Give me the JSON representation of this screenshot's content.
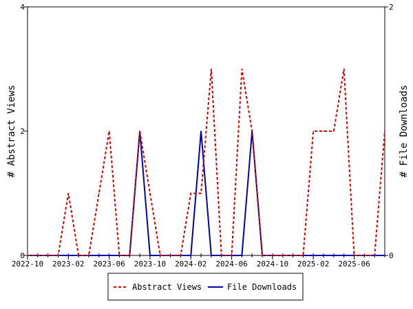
{
  "chart_data": {
    "type": "line",
    "xlabel": "",
    "ylabel_left": "# Abstract Views",
    "ylabel_right": "# File Downloads",
    "x_tick_labels": [
      "2022-10",
      "2023-02",
      "2023-06",
      "2023-10",
      "2024-02",
      "2024-06",
      "2024-10",
      "2025-02",
      "2025-06"
    ],
    "y_left_ticks": [
      "0",
      "2",
      "4"
    ],
    "y_right_ticks": [
      "0",
      "2"
    ],
    "y_left_range": [
      0,
      4
    ],
    "y_right_range": [
      0,
      2
    ],
    "x_months": [
      "2022-10",
      "2022-11",
      "2022-12",
      "2023-01",
      "2023-02",
      "2023-03",
      "2023-04",
      "2023-05",
      "2023-06",
      "2023-07",
      "2023-08",
      "2023-09",
      "2023-10",
      "2023-11",
      "2023-12",
      "2024-01",
      "2024-02",
      "2024-03",
      "2024-04",
      "2024-05",
      "2024-06",
      "2024-07",
      "2024-08",
      "2024-09",
      "2024-10",
      "2024-11",
      "2024-12",
      "2025-01",
      "2025-02",
      "2025-03",
      "2025-04",
      "2025-05",
      "2025-06",
      "2025-07",
      "2025-08",
      "2025-09"
    ],
    "legend_position": "bottom-center",
    "series": [
      {
        "name": "Abstract Views",
        "axis": "left",
        "color": "#cc0000",
        "dash": "dashed",
        "values": [
          0,
          0,
          0,
          0,
          1,
          0,
          0,
          1,
          2,
          0,
          0,
          2,
          1,
          0,
          0,
          0,
          1,
          1,
          3,
          0,
          0,
          3,
          2,
          0,
          0,
          0,
          0,
          0,
          2,
          2,
          2,
          3,
          0,
          0,
          0,
          2
        ]
      },
      {
        "name": "File Downloads",
        "axis": "right",
        "color": "#0000aa",
        "dash": "solid",
        "values": [
          0,
          0,
          0,
          0,
          0,
          0,
          0,
          0,
          0,
          0,
          0,
          1,
          0,
          0,
          0,
          0,
          0,
          1,
          0,
          0,
          0,
          0,
          1,
          0,
          0,
          0,
          0,
          0,
          0,
          0,
          0,
          0,
          0,
          0,
          0,
          0
        ]
      }
    ]
  }
}
